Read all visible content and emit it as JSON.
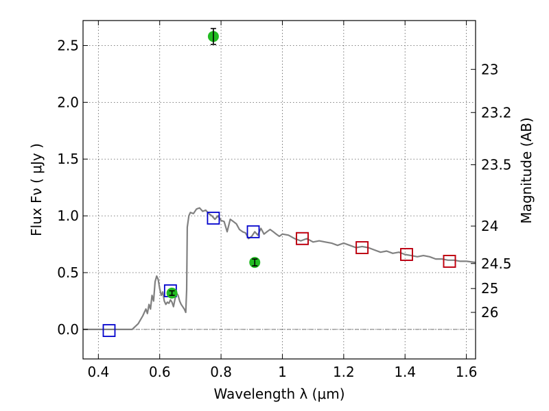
{
  "chart_data": {
    "type": "scatter",
    "xlabel": "Wavelength  λ (μm)",
    "ylabel": "Flux  Fν  ( μJy )",
    "ylabel_right": "Magnitude (AB)",
    "xlim": [
      0.35,
      1.63
    ],
    "ylim": [
      -0.26,
      2.72
    ],
    "x_ticks": [
      0.4,
      0.6,
      0.8,
      1.0,
      1.2,
      1.4,
      1.6
    ],
    "x_tick_labels": [
      "0.4",
      "0.6",
      "0.8",
      "1",
      "1.2",
      "1.4",
      "1.6"
    ],
    "y_ticks": [
      0.0,
      0.5,
      1.0,
      1.5,
      2.0,
      2.5
    ],
    "y_tick_labels": [
      "0.0",
      "0.5",
      "1.0",
      "1.5",
      "2.0",
      "2.5"
    ],
    "right_ticks": [
      {
        "label": "23",
        "flux": 2.29
      },
      {
        "label": "23.2",
        "flux": 1.91
      },
      {
        "label": "23.5",
        "flux": 1.45
      },
      {
        "label": "24",
        "flux": 0.91
      },
      {
        "label": "24.5",
        "flux": 0.58
      },
      {
        "label": "25",
        "flux": 0.36
      },
      {
        "label": "26",
        "flux": 0.15
      }
    ],
    "grid": true,
    "zero_line": true,
    "series": [
      {
        "kind": "line",
        "color": "#808080",
        "x": [
          0.35,
          0.4,
          0.45,
          0.48,
          0.51,
          0.53,
          0.545,
          0.555,
          0.56,
          0.565,
          0.57,
          0.575,
          0.58,
          0.585,
          0.59,
          0.595,
          0.6,
          0.605,
          0.61,
          0.615,
          0.62,
          0.625,
          0.63,
          0.635,
          0.64,
          0.645,
          0.65,
          0.655,
          0.66,
          0.665,
          0.67,
          0.675,
          0.68,
          0.685,
          0.688,
          0.69,
          0.695,
          0.7,
          0.71,
          0.72,
          0.73,
          0.74,
          0.75,
          0.76,
          0.77,
          0.78,
          0.79,
          0.8,
          0.81,
          0.82,
          0.83,
          0.84,
          0.85,
          0.86,
          0.87,
          0.88,
          0.89,
          0.9,
          0.91,
          0.92,
          0.93,
          0.94,
          0.95,
          0.96,
          0.97,
          0.98,
          0.99,
          1.0,
          1.02,
          1.04,
          1.06,
          1.08,
          1.1,
          1.12,
          1.14,
          1.16,
          1.18,
          1.2,
          1.22,
          1.24,
          1.26,
          1.28,
          1.3,
          1.32,
          1.34,
          1.36,
          1.38,
          1.4,
          1.42,
          1.44,
          1.46,
          1.48,
          1.5,
          1.52,
          1.54,
          1.56,
          1.58,
          1.6,
          1.63
        ],
        "y": [
          0.0,
          0.0,
          0.0,
          0.0,
          0.0,
          0.05,
          0.12,
          0.18,
          0.14,
          0.22,
          0.18,
          0.3,
          0.25,
          0.42,
          0.47,
          0.44,
          0.36,
          0.3,
          0.33,
          0.25,
          0.22,
          0.24,
          0.23,
          0.26,
          0.24,
          0.2,
          0.27,
          0.32,
          0.3,
          0.25,
          0.22,
          0.2,
          0.18,
          0.15,
          0.35,
          0.9,
          1.0,
          1.03,
          1.02,
          1.06,
          1.07,
          1.04,
          1.05,
          1.02,
          1.0,
          0.97,
          1.0,
          0.96,
          0.95,
          0.86,
          0.97,
          0.95,
          0.93,
          0.88,
          0.86,
          0.85,
          0.8,
          0.82,
          0.86,
          0.83,
          0.89,
          0.84,
          0.86,
          0.88,
          0.86,
          0.84,
          0.82,
          0.84,
          0.83,
          0.8,
          0.78,
          0.8,
          0.77,
          0.78,
          0.77,
          0.76,
          0.74,
          0.76,
          0.74,
          0.72,
          0.73,
          0.72,
          0.7,
          0.68,
          0.69,
          0.67,
          0.68,
          0.66,
          0.65,
          0.64,
          0.65,
          0.64,
          0.62,
          0.62,
          0.61,
          0.61,
          0.6,
          0.6,
          0.59
        ]
      },
      {
        "kind": "square",
        "color": "#0000cc",
        "x": [
          0.435,
          0.635,
          0.775,
          0.905,
          1.065,
          1.26,
          1.405,
          1.545
        ],
        "y": [
          -0.01,
          0.34,
          0.98,
          0.86,
          0.8,
          0.72,
          0.66,
          0.6
        ]
      },
      {
        "kind": "square",
        "color": "#cc0000",
        "x": [
          1.065,
          1.26,
          1.405,
          1.545
        ],
        "y": [
          0.8,
          0.72,
          0.66,
          0.6
        ]
      },
      {
        "kind": "errorpoint",
        "color": "#22bb22",
        "x": [
          0.64,
          0.775,
          0.91
        ],
        "y": [
          0.32,
          2.58,
          0.59
        ],
        "yerr": [
          0.02,
          0.07,
          0.03
        ]
      }
    ]
  }
}
